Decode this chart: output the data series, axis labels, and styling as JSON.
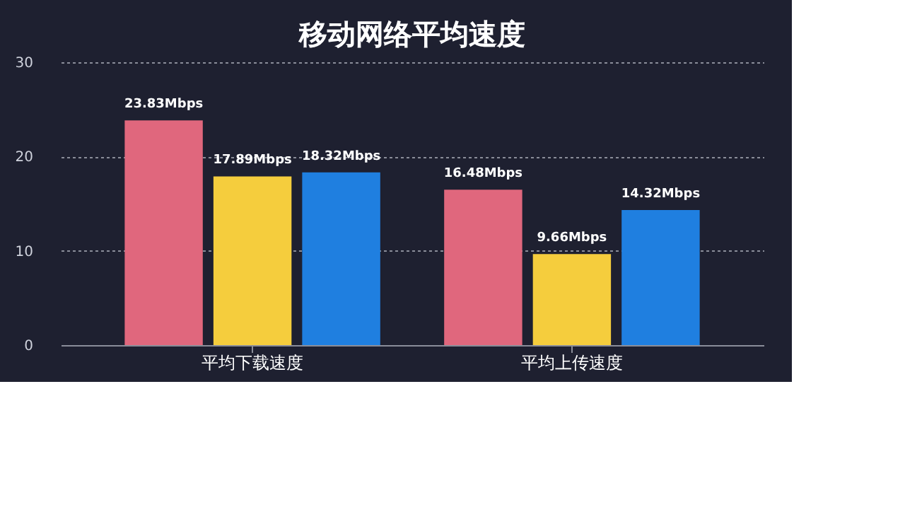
{
  "chart_data": {
    "type": "bar",
    "title": "移动网络平均速度",
    "categories": [
      "平均下载速度",
      "平均上传速度"
    ],
    "series": [
      {
        "color": "#e0677d",
        "values": [
          23.83,
          16.48
        ],
        "value_labels": [
          "23.83Mbps",
          "16.48Mbps"
        ]
      },
      {
        "color": "#f5cd3d",
        "values": [
          17.89,
          9.66
        ],
        "value_labels": [
          "17.89Mbps",
          "9.66Mbps"
        ]
      },
      {
        "color": "#1f7fe0",
        "values": [
          18.32,
          14.32
        ],
        "value_labels": [
          "18.32Mbps",
          "14.32Mbps"
        ]
      }
    ],
    "ylim": [
      0,
      30
    ],
    "yticks": [
      0,
      10,
      20,
      30
    ],
    "grid": "y",
    "legend": false
  }
}
